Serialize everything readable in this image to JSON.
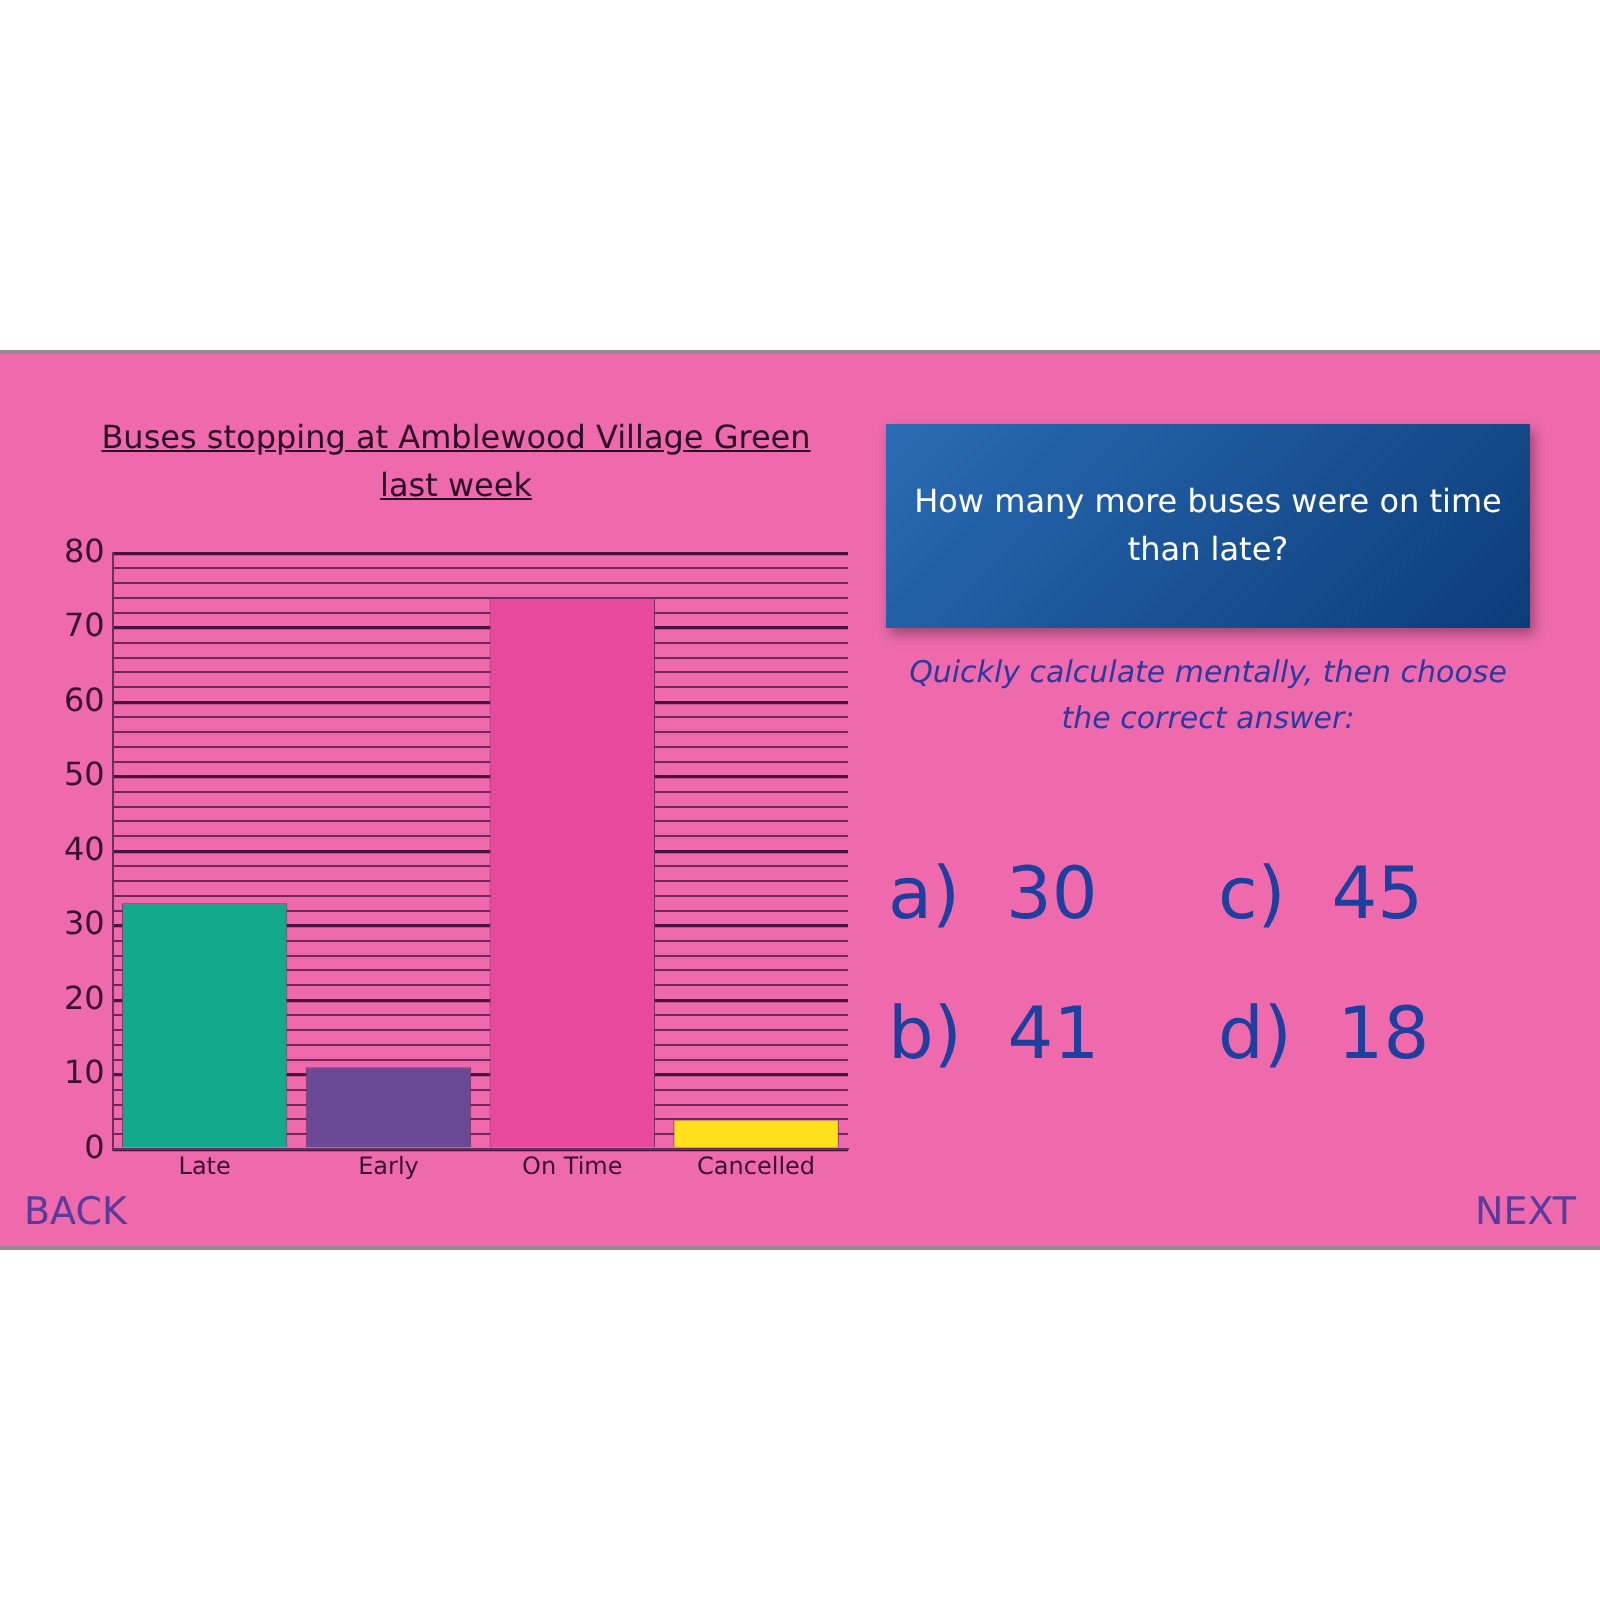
{
  "chart_data": [
    {
      "type": "bar",
      "title": "Buses stopping at Amblewood Village Green last week",
      "categories": [
        "Late",
        "Early",
        "On Time",
        "Cancelled"
      ],
      "values": [
        33,
        11,
        74,
        4
      ],
      "colors": [
        "#12a98c",
        "#6a4a94",
        "#e8499a",
        "#ffe01a"
      ],
      "ylim": [
        0,
        80
      ],
      "yticks": [
        0,
        {
          "value": 2,
          "label": null
        },
        {
          "value": 4,
          "label": null
        },
        {
          "value": 6,
          "label": null
        },
        {
          "value": 8,
          "label": null
        },
        10,
        {
          "value": 12,
          "label": null
        },
        {
          "value": 14,
          "label": null
        },
        {
          "value": 16,
          "label": null
        },
        {
          "value": 18,
          "label": null
        },
        20,
        {
          "value": 22,
          "label": null
        },
        {
          "value": 24,
          "label": null
        },
        {
          "value": 26,
          "label": null
        },
        {
          "value": 28,
          "label": null
        },
        30,
        {
          "value": 32,
          "label": null
        },
        {
          "value": 34,
          "label": null
        },
        {
          "value": 36,
          "label": null
        },
        {
          "value": 38,
          "label": null
        },
        40,
        {
          "value": 42,
          "label": null
        },
        {
          "value": 44,
          "label": null
        },
        {
          "value": 46,
          "label": null
        },
        {
          "value": 48,
          "label": null
        },
        50,
        {
          "value": 52,
          "label": null
        },
        {
          "value": 54,
          "label": null
        },
        {
          "value": 56,
          "label": null
        },
        {
          "value": 58,
          "label": null
        },
        60,
        {
          "value": 62,
          "label": null
        },
        {
          "value": 64,
          "label": null
        },
        {
          "value": 66,
          "label": null
        },
        {
          "value": 68,
          "label": null
        },
        70,
        {
          "value": 72,
          "label": null
        },
        {
          "value": 74,
          "label": null
        },
        {
          "value": 76,
          "label": null
        },
        {
          "value": 78,
          "label": null
        },
        80
      ],
      "grid": "y",
      "legend": false
    },
    {
      "type": "other",
      "title": "How many more buses were on time than late?",
      "annotations": [
        "Quickly calculate mentally, then choose the correct answer:",
        "a)  30",
        "c)  45",
        "b)  41",
        "d)  18",
        "BACK",
        "NEXT"
      ]
    }
  ]
}
